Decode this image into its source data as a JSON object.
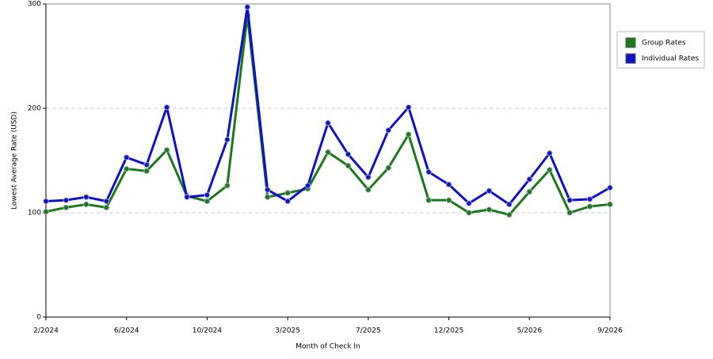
{
  "chart_data": {
    "type": "line",
    "x_label": "Month of Check In",
    "y_label": "Lowest Average Rate (USD)",
    "categories": [
      "2/2024",
      null,
      null,
      null,
      "6/2024",
      null,
      null,
      null,
      "10/2024",
      null,
      null,
      null,
      "3/2025",
      null,
      null,
      null,
      "7/2025",
      null,
      null,
      null,
      "12/2025",
      null,
      null,
      null,
      "5/2026",
      null,
      null,
      null,
      "9/2026"
    ],
    "series": [
      {
        "name": "Group Rates",
        "color": "#1a7a1a",
        "values": [
          101,
          105,
          108,
          105,
          142,
          140,
          160,
          116,
          111,
          126,
          289,
          115,
          119,
          123,
          158,
          145,
          122,
          143,
          175,
          112,
          112,
          100,
          103,
          98,
          120,
          141,
          100,
          106,
          108
        ]
      },
      {
        "name": "Individual Rates",
        "color": "#1010c8",
        "values": [
          111,
          112,
          115,
          111,
          153,
          146,
          201,
          115,
          117,
          170,
          297,
          122,
          111,
          126,
          186,
          156,
          134,
          179,
          201,
          139,
          127,
          109,
          121,
          108,
          132,
          157,
          112,
          113,
          124
        ]
      }
    ],
    "ylim": [
      0,
      300
    ],
    "yticks": [
      0,
      100,
      200,
      300
    ],
    "grid": true,
    "legend": "right"
  }
}
